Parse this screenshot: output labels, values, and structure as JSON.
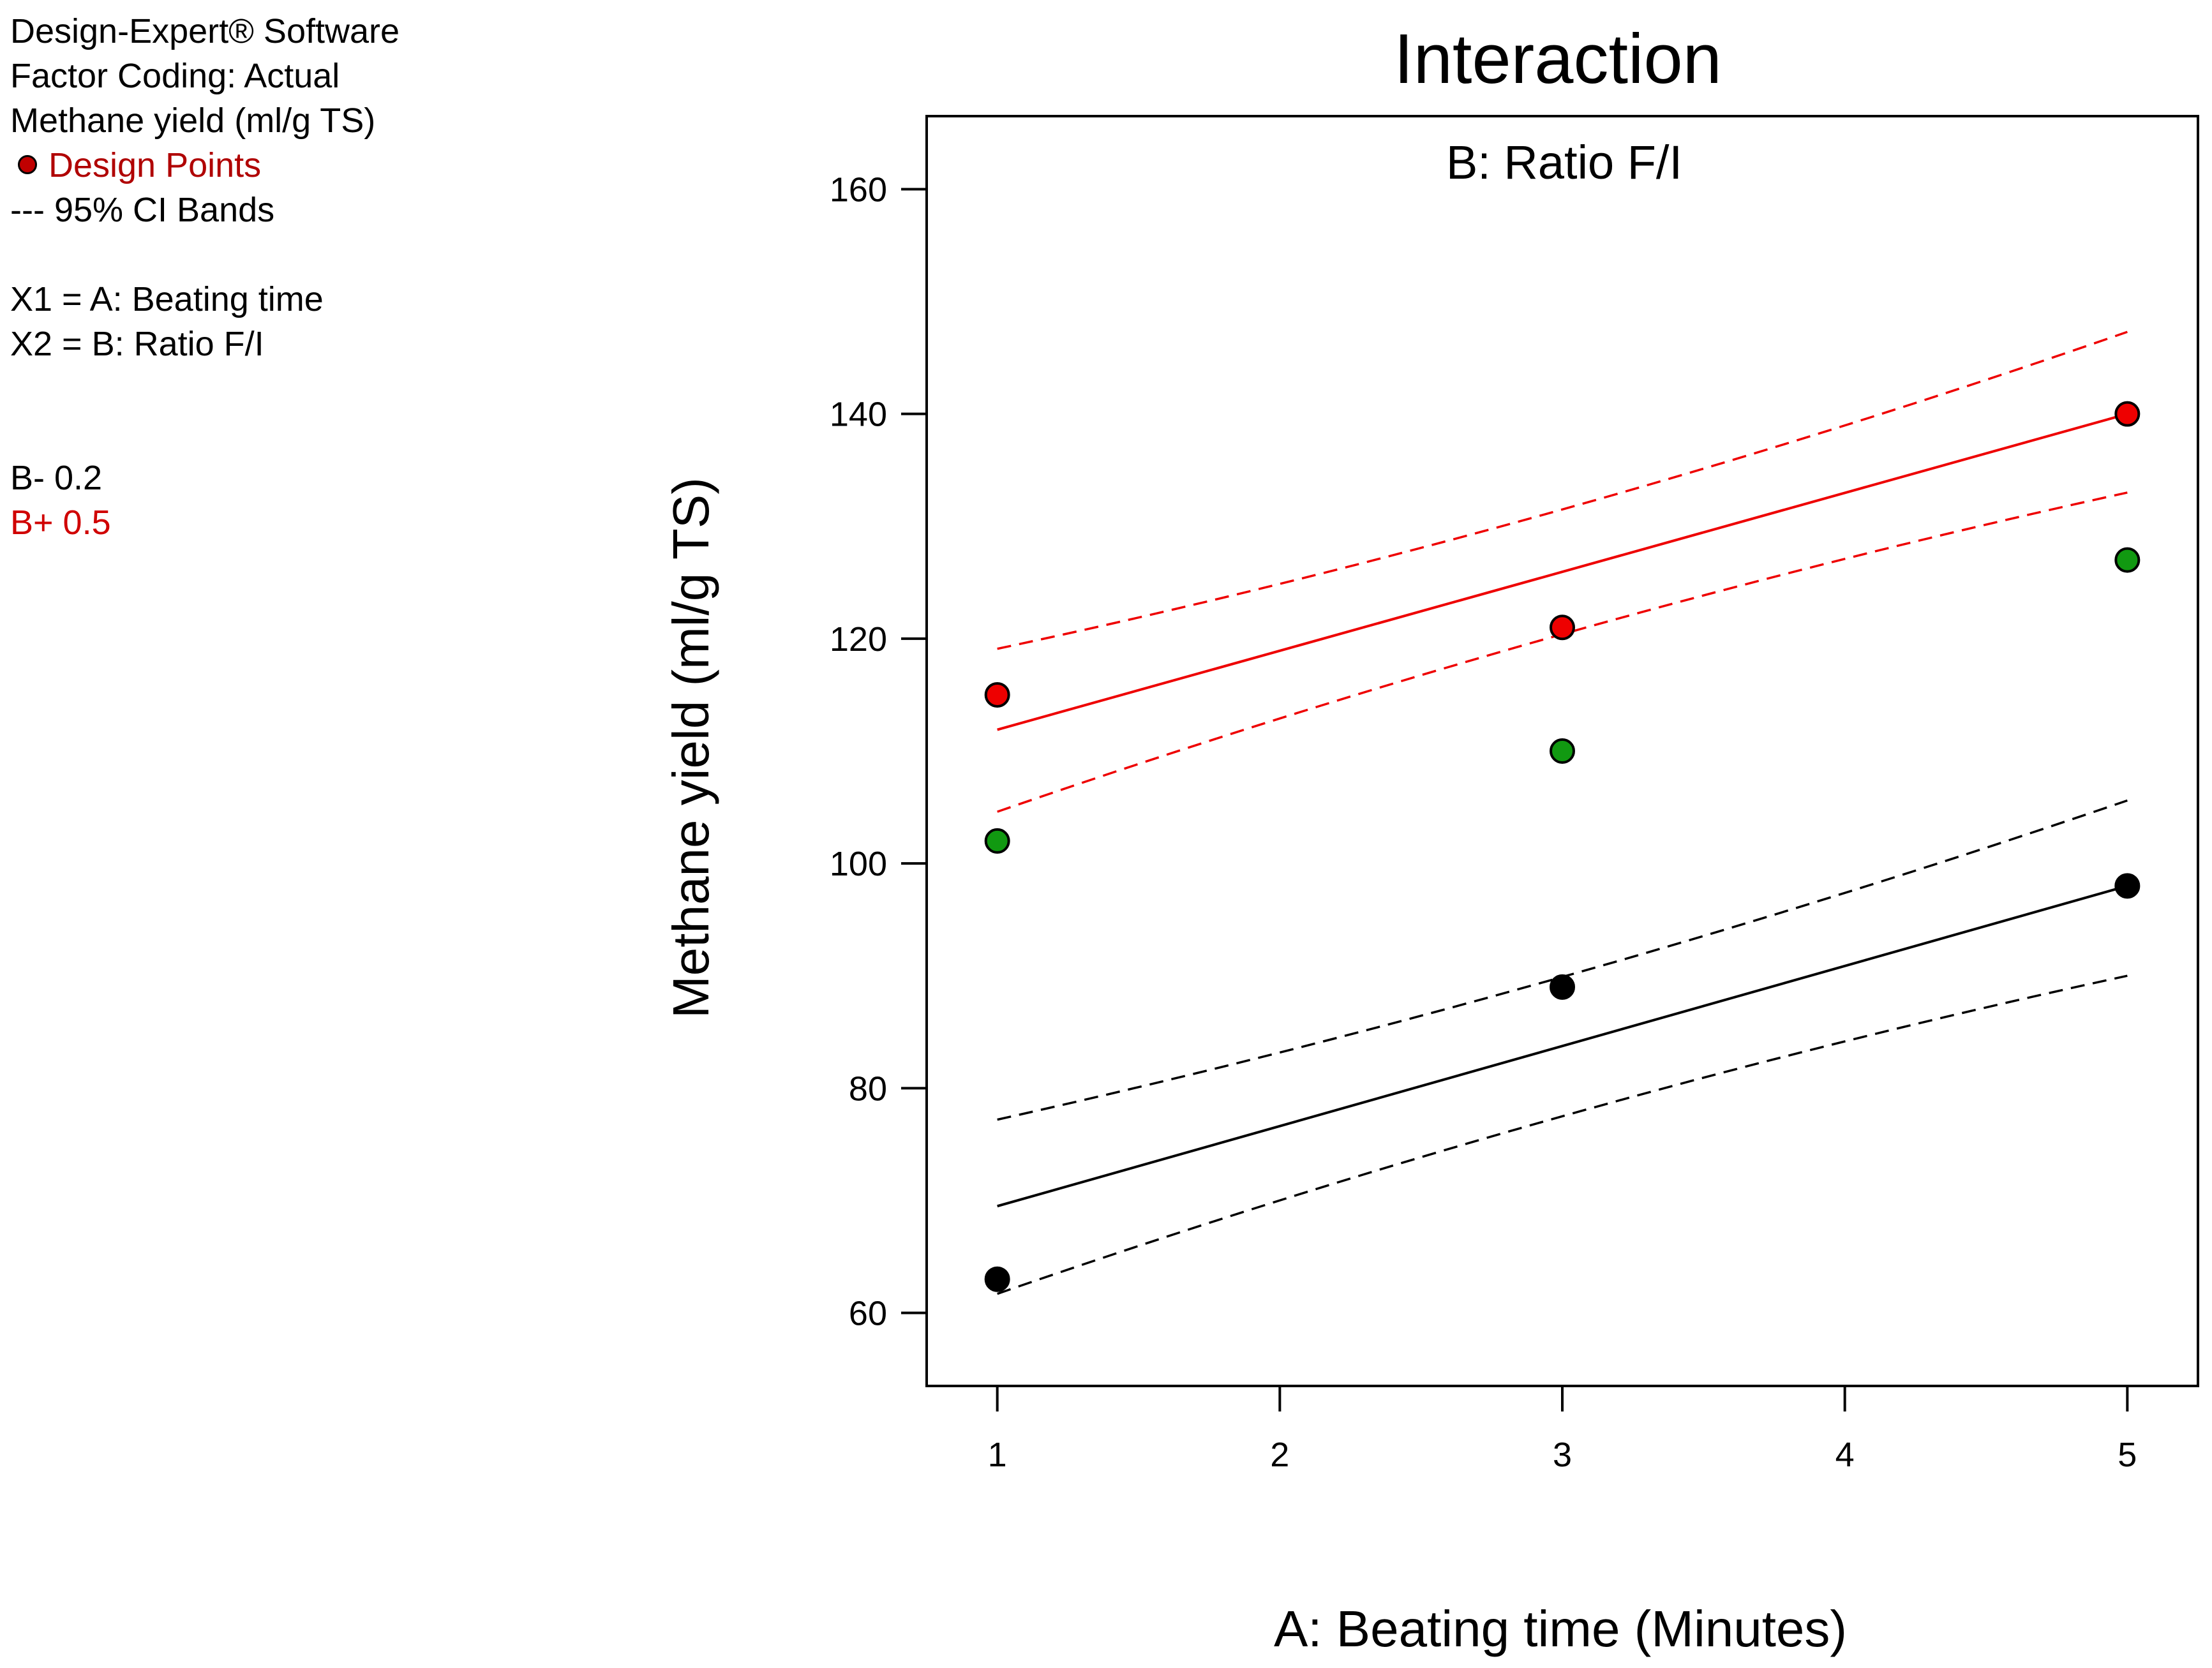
{
  "info": {
    "software": "Design-Expert® Software",
    "factor_coding": "Factor Coding: Actual",
    "response": "Methane yield (ml/g TS)",
    "design_points": "Design Points",
    "ci_bands": "--- 95% CI Bands",
    "x1": "X1 = A: Beating time",
    "x2": "X2 = B: Ratio F/I",
    "b_minus": "B- 0.2",
    "b_plus": "B+ 0.5"
  },
  "colors": {
    "b_minus": "#000000",
    "b_plus": "#ee0000",
    "center_point": "#119911",
    "design_points_legend": "#b00000"
  },
  "chart_data": {
    "type": "line",
    "title": "Interaction",
    "subtitle": "B: Ratio F/I",
    "xlabel": "A: Beating time  (Minutes)",
    "ylabel": "Methane yield (ml/g TS)",
    "xlim": [
      0.75,
      5.25
    ],
    "ylim": [
      53.5,
      166.5
    ],
    "xticks": [
      1,
      2,
      3,
      4,
      5
    ],
    "yticks": [
      60,
      80,
      100,
      120,
      140,
      160
    ],
    "grid": false,
    "series": [
      {
        "key": "b_minus",
        "name": "B- 0.2",
        "color": "#000000",
        "x": [
          1,
          3,
          5
        ],
        "fit": [
          69.5,
          83.7,
          98.0
        ],
        "ci_upper": [
          77.2,
          89.9,
          105.6
        ],
        "ci_lower": [
          61.7,
          77.5,
          90.0
        ],
        "points": [
          [
            1,
            63
          ],
          [
            3,
            89
          ],
          [
            5,
            98
          ]
        ]
      },
      {
        "key": "b_plus",
        "name": "B+ 0.5",
        "color": "#ee0000",
        "x": [
          1,
          3,
          5
        ],
        "fit": [
          111.9,
          126.0,
          140.0
        ],
        "ci_upper": [
          119.1,
          131.5,
          147.3
        ],
        "ci_lower": [
          104.6,
          120.4,
          133.0
        ],
        "points": [
          [
            1,
            115
          ],
          [
            3,
            121
          ],
          [
            5,
            140
          ]
        ]
      }
    ],
    "center_points": {
      "color": "#119911",
      "points": [
        [
          1,
          102
        ],
        [
          3,
          110
        ],
        [
          5,
          127
        ]
      ]
    }
  }
}
